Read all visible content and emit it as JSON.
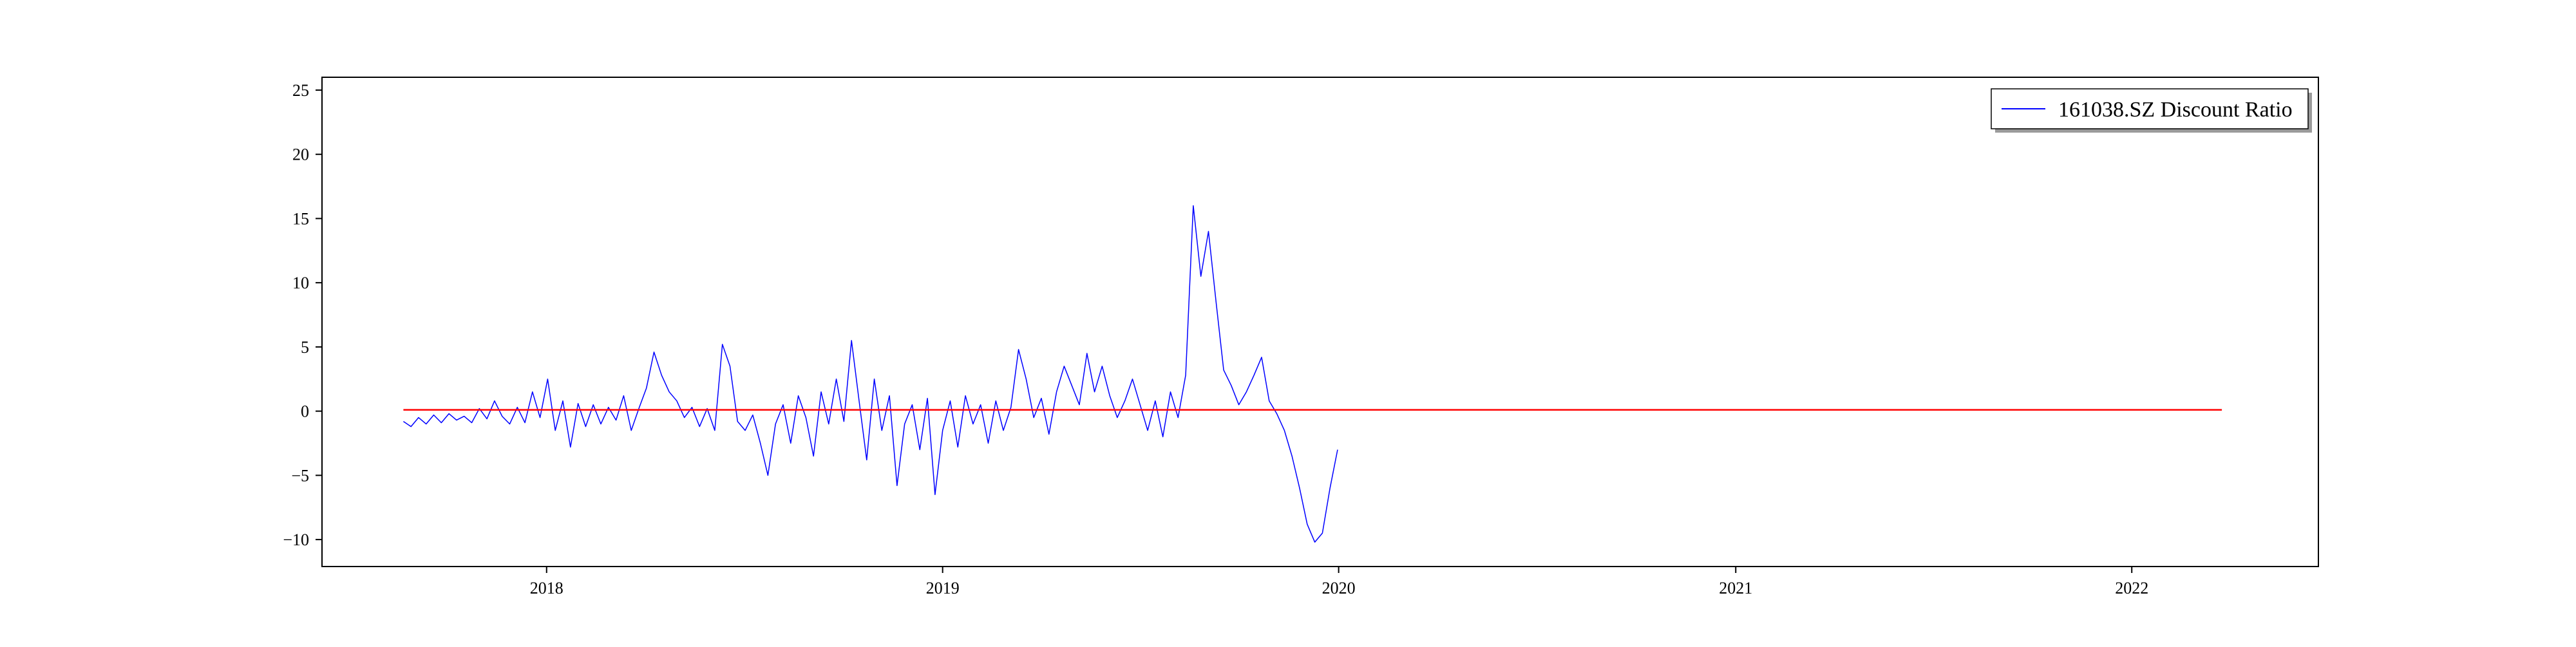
{
  "chart_data": {
    "type": "line",
    "title": "",
    "xlabel": "",
    "ylabel": "",
    "xlim": [
      "2017-06-08",
      "2022-06-22"
    ],
    "ylim": [
      -12.1,
      26.0
    ],
    "x_ticks": [
      {
        "date": "2018-01-01",
        "label": "2018"
      },
      {
        "date": "2019-01-01",
        "label": "2019"
      },
      {
        "date": "2020-01-01",
        "label": "2020"
      },
      {
        "date": "2021-01-01",
        "label": "2021"
      },
      {
        "date": "2022-01-01",
        "label": "2022"
      }
    ],
    "y_ticks": [
      -10,
      -5,
      0,
      5,
      10,
      15,
      20,
      25
    ],
    "y_tick_labels": [
      "−10",
      "−5",
      "0",
      "5",
      "10",
      "15",
      "20",
      "25"
    ],
    "grid": false,
    "legend": {
      "position": "top-right",
      "entries": [
        "161038.SZ Discount Ratio"
      ]
    },
    "series": [
      {
        "name": "161038.SZ Discount Ratio",
        "color": "#0000ff",
        "points": [
          [
            "2017-08-22",
            -0.8
          ],
          [
            "2017-08-29",
            -1.2
          ],
          [
            "2017-09-05",
            -0.5
          ],
          [
            "2017-09-12",
            -1.0
          ],
          [
            "2017-09-19",
            -0.3
          ],
          [
            "2017-09-26",
            -0.9
          ],
          [
            "2017-10-03",
            -0.2
          ],
          [
            "2017-10-10",
            -0.7
          ],
          [
            "2017-10-17",
            -0.4
          ],
          [
            "2017-10-24",
            -0.9
          ],
          [
            "2017-10-31",
            0.2
          ],
          [
            "2017-11-07",
            -0.6
          ],
          [
            "2017-11-14",
            0.8
          ],
          [
            "2017-11-21",
            -0.4
          ],
          [
            "2017-11-28",
            -1.0
          ],
          [
            "2017-12-05",
            0.3
          ],
          [
            "2017-12-12",
            -0.9
          ],
          [
            "2017-12-19",
            1.5
          ],
          [
            "2017-12-26",
            -0.5
          ],
          [
            "2018-01-02",
            2.5
          ],
          [
            "2018-01-09",
            -1.5
          ],
          [
            "2018-01-16",
            0.8
          ],
          [
            "2018-01-23",
            -2.8
          ],
          [
            "2018-01-30",
            0.6
          ],
          [
            "2018-02-06",
            -1.2
          ],
          [
            "2018-02-13",
            0.5
          ],
          [
            "2018-02-20",
            -1.0
          ],
          [
            "2018-02-27",
            0.3
          ],
          [
            "2018-03-06",
            -0.7
          ],
          [
            "2018-03-13",
            1.2
          ],
          [
            "2018-03-20",
            -1.5
          ],
          [
            "2018-03-27",
            0.2
          ],
          [
            "2018-04-03",
            1.8
          ],
          [
            "2018-04-10",
            4.6
          ],
          [
            "2018-04-17",
            2.8
          ],
          [
            "2018-04-24",
            1.5
          ],
          [
            "2018-05-01",
            0.8
          ],
          [
            "2018-05-08",
            -0.5
          ],
          [
            "2018-05-15",
            0.3
          ],
          [
            "2018-05-22",
            -1.2
          ],
          [
            "2018-05-29",
            0.2
          ],
          [
            "2018-06-05",
            -1.5
          ],
          [
            "2018-06-12",
            5.2
          ],
          [
            "2018-06-19",
            3.5
          ],
          [
            "2018-06-26",
            -0.8
          ],
          [
            "2018-07-03",
            -1.5
          ],
          [
            "2018-07-10",
            -0.3
          ],
          [
            "2018-07-17",
            -2.5
          ],
          [
            "2018-07-24",
            -5.0
          ],
          [
            "2018-07-31",
            -1.0
          ],
          [
            "2018-08-07",
            0.5
          ],
          [
            "2018-08-14",
            -2.5
          ],
          [
            "2018-08-21",
            1.2
          ],
          [
            "2018-08-28",
            -0.5
          ],
          [
            "2018-09-04",
            -3.5
          ],
          [
            "2018-09-11",
            1.5
          ],
          [
            "2018-09-18",
            -1.0
          ],
          [
            "2018-09-25",
            2.5
          ],
          [
            "2018-10-02",
            -0.8
          ],
          [
            "2018-10-09",
            5.5
          ],
          [
            "2018-10-16",
            0.8
          ],
          [
            "2018-10-23",
            -3.8
          ],
          [
            "2018-10-30",
            2.5
          ],
          [
            "2018-11-06",
            -1.5
          ],
          [
            "2018-11-13",
            1.2
          ],
          [
            "2018-11-20",
            -5.8
          ],
          [
            "2018-11-27",
            -1.0
          ],
          [
            "2018-12-04",
            0.5
          ],
          [
            "2018-12-11",
            -3.0
          ],
          [
            "2018-12-18",
            1.0
          ],
          [
            "2018-12-25",
            -6.5
          ],
          [
            "2019-01-01",
            -1.5
          ],
          [
            "2019-01-08",
            0.8
          ],
          [
            "2019-01-15",
            -2.8
          ],
          [
            "2019-01-22",
            1.2
          ],
          [
            "2019-01-29",
            -1.0
          ],
          [
            "2019-02-05",
            0.5
          ],
          [
            "2019-02-12",
            -2.5
          ],
          [
            "2019-02-19",
            0.8
          ],
          [
            "2019-02-26",
            -1.5
          ],
          [
            "2019-03-05",
            0.3
          ],
          [
            "2019-03-12",
            4.8
          ],
          [
            "2019-03-19",
            2.5
          ],
          [
            "2019-03-26",
            -0.5
          ],
          [
            "2019-04-02",
            1.0
          ],
          [
            "2019-04-09",
            -1.8
          ],
          [
            "2019-04-16",
            1.5
          ],
          [
            "2019-04-23",
            3.5
          ],
          [
            "2019-04-30",
            2.0
          ],
          [
            "2019-05-07",
            0.5
          ],
          [
            "2019-05-14",
            4.5
          ],
          [
            "2019-05-21",
            1.5
          ],
          [
            "2019-05-28",
            3.5
          ],
          [
            "2019-06-04",
            1.2
          ],
          [
            "2019-06-11",
            -0.5
          ],
          [
            "2019-06-18",
            0.8
          ],
          [
            "2019-06-25",
            2.5
          ],
          [
            "2019-07-02",
            0.5
          ],
          [
            "2019-07-09",
            -1.5
          ],
          [
            "2019-07-16",
            0.8
          ],
          [
            "2019-07-23",
            -2.0
          ],
          [
            "2019-07-30",
            1.5
          ],
          [
            "2019-08-06",
            -0.5
          ],
          [
            "2019-08-13",
            2.8
          ],
          [
            "2019-08-20",
            16.0
          ],
          [
            "2019-08-27",
            10.5
          ],
          [
            "2019-09-03",
            14.0
          ],
          [
            "2019-09-10",
            8.5
          ],
          [
            "2019-09-17",
            3.2
          ],
          [
            "2019-09-24",
            2.0
          ],
          [
            "2019-10-01",
            0.5
          ],
          [
            "2019-10-08",
            1.5
          ],
          [
            "2019-10-15",
            2.8
          ],
          [
            "2019-10-22",
            4.2
          ],
          [
            "2019-10-29",
            0.8
          ],
          [
            "2019-11-05",
            -0.2
          ],
          [
            "2019-11-12",
            -1.5
          ],
          [
            "2019-11-19",
            -3.5
          ],
          [
            "2019-11-26",
            -6.0
          ],
          [
            "2019-12-03",
            -8.8
          ],
          [
            "2019-12-10",
            -10.2
          ],
          [
            "2019-12-17",
            -9.5
          ],
          [
            "2019-12-24",
            -6.0
          ],
          [
            "2019-12-31",
            -3.0
          ]
        ]
      },
      {
        "name": "",
        "color": "#ff0000",
        "points": [
          [
            "2017-08-22",
            0.1
          ],
          [
            "2022-03-25",
            0.1
          ]
        ]
      }
    ]
  }
}
